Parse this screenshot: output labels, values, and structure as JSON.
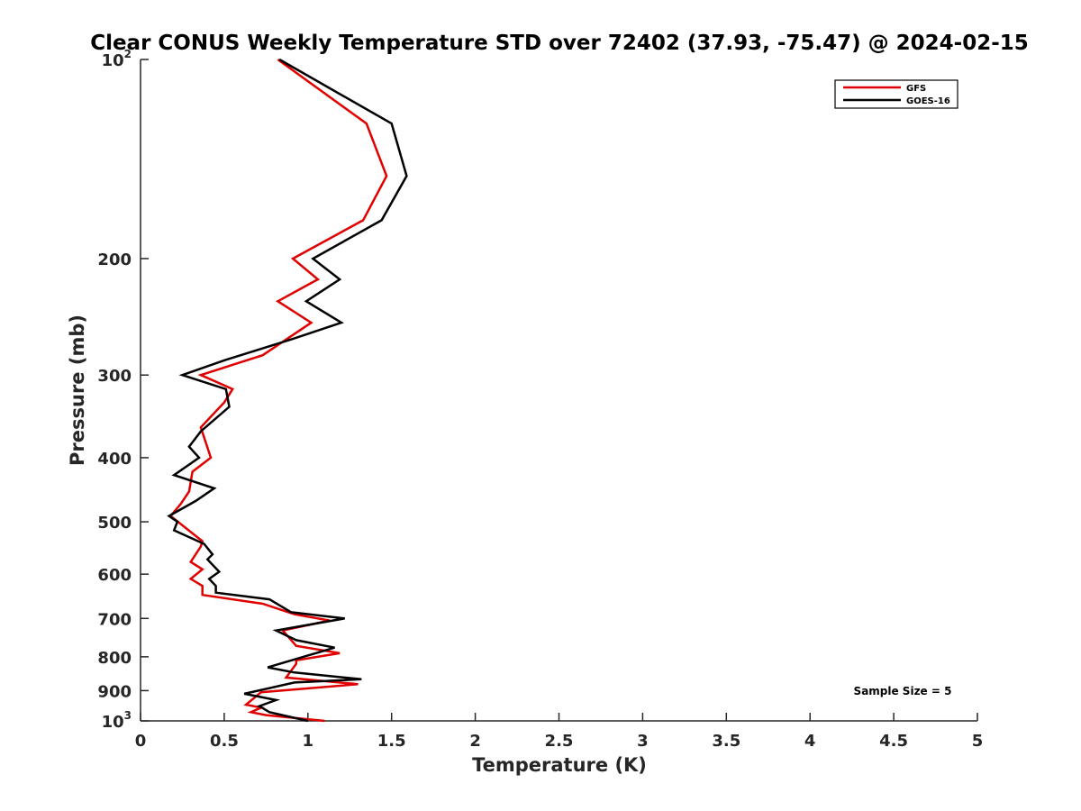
{
  "chart_data": {
    "type": "line",
    "title": "Clear CONUS Weekly Temperature STD over 72402 (37.93, -75.47) @ 2024-02-15",
    "xlabel": "Temperature (K)",
    "ylabel": "Pressure (mb)",
    "xlim": [
      0,
      5
    ],
    "ylim": [
      1000,
      100
    ],
    "y_scale": "log",
    "y_reversed": true,
    "grid": false,
    "legend_position": "top-right",
    "x_ticks": [
      {
        "value": 0,
        "label": "0"
      },
      {
        "value": 0.5,
        "label": "0.5"
      },
      {
        "value": 1,
        "label": "1"
      },
      {
        "value": 1.5,
        "label": "1.5"
      },
      {
        "value": 2,
        "label": "2"
      },
      {
        "value": 2.5,
        "label": "2.5"
      },
      {
        "value": 3,
        "label": "3"
      },
      {
        "value": 3.5,
        "label": "3.5"
      },
      {
        "value": 4,
        "label": "4"
      },
      {
        "value": 4.5,
        "label": "4.5"
      },
      {
        "value": 5,
        "label": "5"
      }
    ],
    "y_ticks": [
      {
        "value": 100,
        "label": "10",
        "sup": "2"
      },
      {
        "value": 200,
        "label": "200"
      },
      {
        "value": 300,
        "label": "300"
      },
      {
        "value": 400,
        "label": "400"
      },
      {
        "value": 500,
        "label": "500"
      },
      {
        "value": 600,
        "label": "600"
      },
      {
        "value": 700,
        "label": "700"
      },
      {
        "value": 800,
        "label": "800"
      },
      {
        "value": 900,
        "label": "900"
      },
      {
        "value": 1000,
        "label": "10",
        "sup": "3"
      }
    ],
    "series": [
      {
        "name": "GFS",
        "color": "#e00000",
        "points": [
          [
            0.82,
            100
          ],
          [
            1.35,
            125
          ],
          [
            1.47,
            150
          ],
          [
            1.33,
            175
          ],
          [
            0.91,
            200
          ],
          [
            1.06,
            215
          ],
          [
            0.82,
            232
          ],
          [
            1.02,
            250
          ],
          [
            0.73,
            280
          ],
          [
            0.36,
            300
          ],
          [
            0.55,
            315
          ],
          [
            0.5,
            330
          ],
          [
            0.36,
            360
          ],
          [
            0.42,
            400
          ],
          [
            0.31,
            420
          ],
          [
            0.29,
            450
          ],
          [
            0.24,
            470
          ],
          [
            0.18,
            490
          ],
          [
            0.37,
            535
          ],
          [
            0.36,
            545
          ],
          [
            0.3,
            575
          ],
          [
            0.37,
            590
          ],
          [
            0.3,
            610
          ],
          [
            0.37,
            625
          ],
          [
            0.37,
            645
          ],
          [
            0.73,
            665
          ],
          [
            0.92,
            690
          ],
          [
            1.13,
            705
          ],
          [
            0.85,
            730
          ],
          [
            0.93,
            770
          ],
          [
            1.19,
            790
          ],
          [
            0.93,
            810
          ],
          [
            0.93,
            820
          ],
          [
            0.87,
            860
          ],
          [
            1.3,
            880
          ],
          [
            0.72,
            905
          ],
          [
            0.63,
            945
          ],
          [
            0.72,
            955
          ],
          [
            0.66,
            970
          ],
          [
            0.75,
            980
          ],
          [
            1.1,
            1000
          ]
        ]
      },
      {
        "name": "GOES-16",
        "color": "#000000",
        "points": [
          [
            0.83,
            100
          ],
          [
            1.5,
            125
          ],
          [
            1.59,
            150
          ],
          [
            1.44,
            175
          ],
          [
            1.03,
            200
          ],
          [
            1.19,
            215
          ],
          [
            0.99,
            232
          ],
          [
            1.2,
            250
          ],
          [
            0.9,
            265
          ],
          [
            0.5,
            285
          ],
          [
            0.25,
            300
          ],
          [
            0.51,
            315
          ],
          [
            0.53,
            335
          ],
          [
            0.36,
            365
          ],
          [
            0.29,
            385
          ],
          [
            0.35,
            400
          ],
          [
            0.2,
            425
          ],
          [
            0.44,
            445
          ],
          [
            0.33,
            465
          ],
          [
            0.17,
            490
          ],
          [
            0.22,
            500
          ],
          [
            0.2,
            515
          ],
          [
            0.38,
            540
          ],
          [
            0.43,
            560
          ],
          [
            0.4,
            570
          ],
          [
            0.47,
            595
          ],
          [
            0.41,
            610
          ],
          [
            0.45,
            625
          ],
          [
            0.45,
            640
          ],
          [
            0.77,
            655
          ],
          [
            0.9,
            685
          ],
          [
            1.22,
            700
          ],
          [
            0.81,
            730
          ],
          [
            0.93,
            755
          ],
          [
            1.16,
            775
          ],
          [
            0.76,
            830
          ],
          [
            0.92,
            845
          ],
          [
            1.32,
            865
          ],
          [
            0.92,
            875
          ],
          [
            0.62,
            910
          ],
          [
            0.81,
            930
          ],
          [
            0.71,
            950
          ],
          [
            0.77,
            970
          ],
          [
            1.0,
            1000
          ]
        ]
      }
    ],
    "annotation": "Sample Size = 5"
  }
}
